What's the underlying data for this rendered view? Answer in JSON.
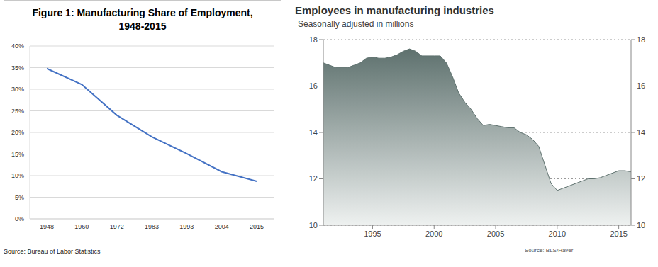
{
  "chart_data": [
    {
      "type": "line",
      "title": "Figure 1: Manufacturing Share of Employment, 1948-2015",
      "categories": [
        "1948",
        "1960",
        "1972",
        "1983",
        "1993",
        "2004",
        "2015"
      ],
      "values": [
        34.8,
        31.1,
        24.0,
        19.0,
        15.1,
        10.9,
        8.7
      ],
      "color": "#4472c4",
      "ylim": [
        0,
        40
      ],
      "yticks": [
        {
          "value": 0,
          "label": "0%"
        },
        {
          "value": 5,
          "label": "5%"
        },
        {
          "value": 10,
          "label": "10%"
        },
        {
          "value": 15,
          "label": "15%"
        },
        {
          "value": 20,
          "label": "20%"
        },
        {
          "value": 25,
          "label": "25%"
        },
        {
          "value": 30,
          "label": "30%"
        },
        {
          "value": 35,
          "label": "35%"
        },
        {
          "value": 40,
          "label": "40%"
        }
      ],
      "grid": true,
      "annotations": [
        "Source: Bureau of Labor Statistics"
      ]
    },
    {
      "type": "area",
      "title": "Employees in manufacturing industries",
      "subtitle": "Seasonally adjusted in millions",
      "x": [
        1991.0,
        1991.5,
        1992.0,
        1992.5,
        1993.0,
        1993.5,
        1994.0,
        1994.5,
        1995.0,
        1995.5,
        1996.0,
        1996.5,
        1997.0,
        1997.5,
        1998.0,
        1998.5,
        1999.0,
        1999.5,
        2000.0,
        2000.5,
        2001.0,
        2001.5,
        2002.0,
        2002.5,
        2003.0,
        2003.5,
        2004.0,
        2004.5,
        2005.0,
        2005.5,
        2006.0,
        2006.5,
        2007.0,
        2007.5,
        2008.0,
        2008.5,
        2009.0,
        2009.5,
        2010.0,
        2010.5,
        2011.0,
        2011.5,
        2012.0,
        2012.5,
        2013.0,
        2013.5,
        2014.0,
        2014.5,
        2015.0,
        2015.5,
        2016.0
      ],
      "values": [
        17.0,
        16.9,
        16.8,
        16.8,
        16.8,
        16.9,
        17.0,
        17.2,
        17.25,
        17.2,
        17.2,
        17.25,
        17.35,
        17.5,
        17.6,
        17.5,
        17.3,
        17.3,
        17.3,
        17.3,
        17.0,
        16.4,
        15.7,
        15.3,
        15.0,
        14.6,
        14.3,
        14.35,
        14.3,
        14.25,
        14.2,
        14.2,
        14.0,
        13.9,
        13.7,
        13.4,
        12.6,
        11.8,
        11.5,
        11.6,
        11.7,
        11.8,
        11.9,
        12.0,
        12.0,
        12.05,
        12.15,
        12.25,
        12.35,
        12.35,
        12.3
      ],
      "color": "#5e716e",
      "xlim": [
        1991,
        2016
      ],
      "xticks": [
        1995,
        2000,
        2005,
        2010,
        2015
      ],
      "ylim": [
        10,
        18
      ],
      "yticks": [
        10,
        12,
        14,
        16,
        18
      ],
      "y2lim": [
        10,
        18
      ],
      "y2ticks": [
        10,
        12,
        14,
        16,
        18
      ],
      "grid": true,
      "annotations": [
        "Source: BLS/Haver"
      ]
    }
  ]
}
